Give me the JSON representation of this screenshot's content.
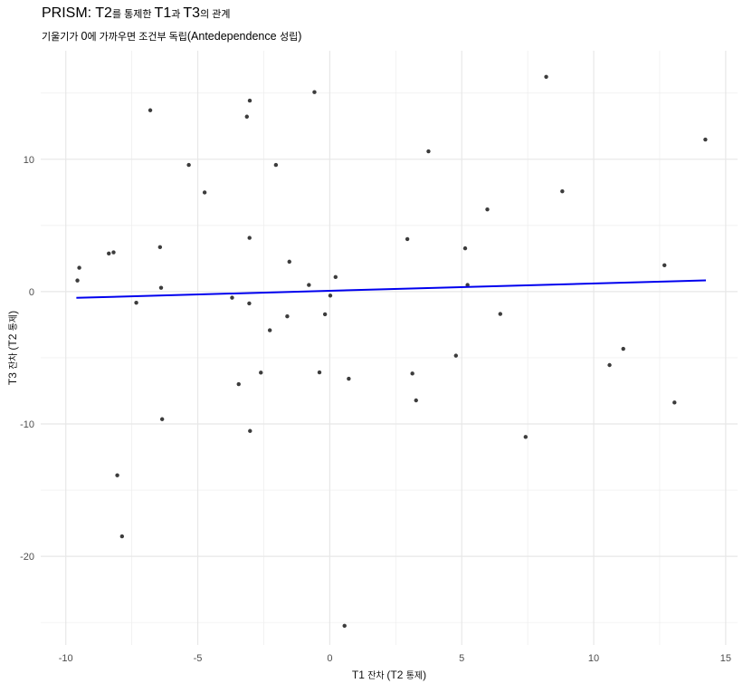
{
  "title": {
    "segments": [
      {
        "text": "PRISM: T2",
        "style": "lg"
      },
      {
        "text": "를 통제한 ",
        "style": "sm"
      },
      {
        "text": "T1",
        "style": "lg"
      },
      {
        "text": "과 ",
        "style": "sm"
      },
      {
        "text": "T3",
        "style": "lg"
      },
      {
        "text": "의 관계",
        "style": "sm"
      }
    ]
  },
  "subtitle": {
    "segments": [
      {
        "text": "기울기가 ",
        "style": "sm"
      },
      {
        "text": "0",
        "style": "lg"
      },
      {
        "text": "에 가까우면 조건부 독립",
        "style": "sm"
      },
      {
        "text": "(Antedependence ",
        "style": "lg"
      },
      {
        "text": "성립",
        "style": "sm"
      },
      {
        "text": ")",
        "style": "lg"
      }
    ]
  },
  "chart_data": {
    "type": "scatter",
    "xlabel_segments": [
      {
        "text": "T1 ",
        "style": "lg"
      },
      {
        "text": "잔차 ",
        "style": "sm"
      },
      {
        "text": "(T2 ",
        "style": "lg"
      },
      {
        "text": "통제",
        "style": "sm"
      },
      {
        "text": ")",
        "style": "lg"
      }
    ],
    "ylabel_segments": [
      {
        "text": "T3 ",
        "style": "lg"
      },
      {
        "text": "잔차 ",
        "style": "sm"
      },
      {
        "text": "(T2 ",
        "style": "lg"
      },
      {
        "text": "통제",
        "style": "sm"
      },
      {
        "text": ")",
        "style": "lg"
      }
    ],
    "xlim": [
      -10.95,
      15.45
    ],
    "ylim": [
      -26.7,
      18.2
    ],
    "x_major_ticks": [
      -10,
      -5,
      0,
      5,
      10,
      15
    ],
    "y_major_ticks": [
      10,
      0,
      -10,
      -20
    ],
    "x_minor_ticks": [
      -7.5,
      -2.5,
      2.5,
      7.5,
      12.5
    ],
    "y_minor_ticks": [
      15,
      5,
      -5,
      -15,
      -25
    ],
    "x_tick_labels": [
      "-10",
      "-5",
      "0",
      "5",
      "10",
      "15"
    ],
    "y_tick_labels": [
      "10",
      "0",
      "-10",
      "-20"
    ],
    "grid": true,
    "legend": "none",
    "points": [
      [
        -0.58,
        15.07
      ],
      [
        -3.03,
        14.43
      ],
      [
        -6.8,
        13.7
      ],
      [
        -3.14,
        13.22
      ],
      [
        -5.34,
        9.57
      ],
      [
        -2.04,
        9.57
      ],
      [
        -4.74,
        7.49
      ],
      [
        8.2,
        16.23
      ],
      [
        14.23,
        11.49
      ],
      [
        3.74,
        10.6
      ],
      [
        8.81,
        7.58
      ],
      [
        -3.04,
        4.06
      ],
      [
        -6.43,
        3.36
      ],
      [
        -8.37,
        2.88
      ],
      [
        -8.19,
        2.97
      ],
      [
        -9.49,
        1.8
      ],
      [
        -9.56,
        0.84
      ],
      [
        -6.39,
        0.29
      ],
      [
        -1.53,
        2.26
      ],
      [
        0.22,
        1.1
      ],
      [
        -0.79,
        0.5
      ],
      [
        0.02,
        -0.3
      ],
      [
        -3.7,
        -0.46
      ],
      [
        -3.05,
        -0.89
      ],
      [
        -7.33,
        -0.84
      ],
      [
        -1.61,
        -1.87
      ],
      [
        -0.18,
        -1.71
      ],
      [
        -2.27,
        -2.92
      ],
      [
        5.97,
        6.21
      ],
      [
        2.94,
        3.97
      ],
      [
        5.13,
        3.27
      ],
      [
        12.68,
        1.99
      ],
      [
        5.22,
        0.5
      ],
      [
        6.46,
        -1.69
      ],
      [
        -2.61,
        -6.12
      ],
      [
        -3.45,
        -6.99
      ],
      [
        -0.39,
        -6.1
      ],
      [
        0.72,
        -6.58
      ],
      [
        -6.35,
        -9.64
      ],
      [
        -3.02,
        -10.53
      ],
      [
        -8.05,
        -13.88
      ],
      [
        11.12,
        -4.32
      ],
      [
        4.78,
        -4.84
      ],
      [
        10.6,
        -5.55
      ],
      [
        3.13,
        -6.19
      ],
      [
        3.27,
        -8.22
      ],
      [
        13.06,
        -8.38
      ],
      [
        7.42,
        -10.98
      ],
      [
        -7.87,
        -18.49
      ],
      [
        0.56,
        -25.25
      ]
    ],
    "regression_line": {
      "x1": -9.6,
      "y1": -0.47,
      "x2": 14.25,
      "y2": 0.85
    },
    "colors": {
      "point": "#3c3c3c",
      "line": "#0000ee",
      "grid_major": "#e7e7e7",
      "grid_minor": "#ededed",
      "tick_label": "#4d4d4d",
      "background": "#ffffff"
    }
  }
}
